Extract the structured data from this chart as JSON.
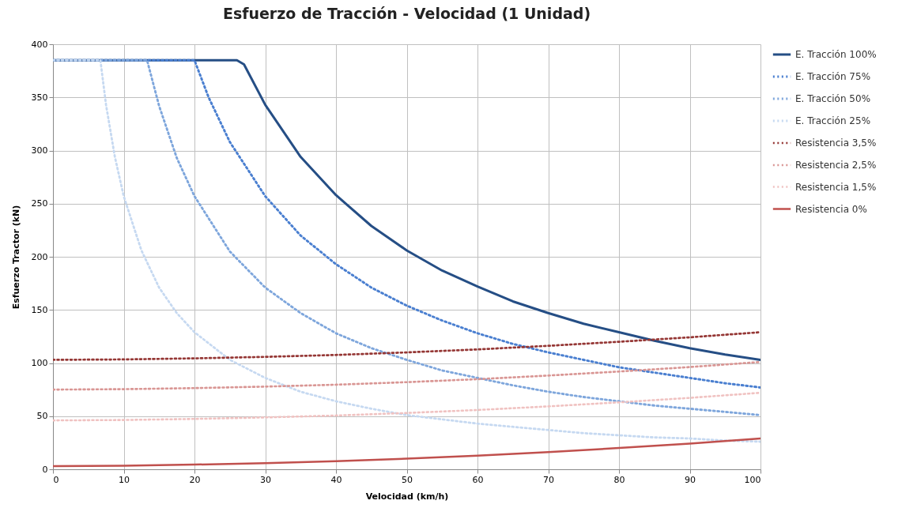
{
  "chart_data": {
    "type": "line",
    "title": "Esfuerzo de Tracción - Velocidad (1 Unidad)",
    "xlabel": "Velocidad (km/h)",
    "ylabel": "Esfuerzo Tractor (kN)",
    "xlim": [
      0,
      100
    ],
    "xticks": [
      0,
      10,
      20,
      30,
      40,
      50,
      60,
      70,
      80,
      90,
      100
    ],
    "ylim": [
      0,
      400
    ],
    "yticks": [
      0,
      50,
      100,
      150,
      200,
      250,
      300,
      350,
      400
    ],
    "grid": true,
    "legend": "right",
    "marker": "none",
    "series": [
      {
        "name": "E. Tracción 100%",
        "color": "#254e85",
        "line_style": "solid",
        "x": [
          0,
          26,
          27,
          30,
          35,
          40,
          45,
          50,
          55,
          60,
          65,
          70,
          75,
          80,
          85,
          90,
          95,
          100
        ],
        "values": [
          385,
          385,
          381,
          343,
          294,
          258,
          229,
          206,
          187,
          172,
          158,
          147,
          137,
          129,
          121,
          114,
          108,
          103
        ]
      },
      {
        "name": "E. Tracción 75%",
        "color": "#4a7fd0",
        "line_style": "dotted",
        "x": [
          0,
          20,
          22,
          25,
          30,
          35,
          40,
          45,
          50,
          55,
          60,
          65,
          70,
          75,
          80,
          85,
          90,
          95,
          100
        ],
        "values": [
          385,
          385,
          350,
          308,
          257,
          220,
          193,
          171,
          154,
          140,
          128,
          118,
          110,
          103,
          96,
          91,
          86,
          81,
          77
        ]
      },
      {
        "name": "E. Tracción 50%",
        "color": "#7ea6dc",
        "line_style": "dotted",
        "x": [
          0,
          13.3,
          15,
          17.5,
          20,
          25,
          30,
          35,
          40,
          45,
          50,
          55,
          60,
          65,
          70,
          75,
          80,
          85,
          90,
          95,
          100
        ],
        "values": [
          385,
          385,
          342,
          293,
          257,
          205,
          171,
          147,
          128,
          114,
          103,
          93,
          86,
          79,
          73,
          68,
          64,
          60,
          57,
          54,
          51
        ]
      },
      {
        "name": "E. Tracción 25%",
        "color": "#c6d9f1",
        "line_style": "dotted",
        "x": [
          0,
          6.7,
          7.5,
          8.75,
          10,
          12.5,
          15,
          17.5,
          20,
          25,
          30,
          35,
          40,
          45,
          50,
          55,
          60,
          65,
          70,
          75,
          80,
          85,
          90,
          95,
          100
        ],
        "values": [
          385,
          385,
          343,
          294,
          257,
          206,
          171,
          147,
          129,
          103,
          86,
          73,
          64,
          57,
          51,
          47,
          43,
          40,
          37,
          34,
          32,
          30,
          29,
          27,
          26
        ]
      },
      {
        "name": "Resistencia 3,5%",
        "color": "#953735",
        "line_style": "dotted",
        "x": [
          0,
          10,
          20,
          30,
          40,
          50,
          60,
          70,
          80,
          90,
          100
        ],
        "values": [
          103,
          103.4,
          104.4,
          105.8,
          107.6,
          110,
          112.8,
          116.2,
          120,
          124.2,
          129
        ]
      },
      {
        "name": "Resistencia 2,5%",
        "color": "#d99694",
        "line_style": "dotted",
        "x": [
          0,
          10,
          20,
          30,
          40,
          50,
          60,
          70,
          80,
          90,
          100
        ],
        "values": [
          75,
          75.4,
          76.4,
          77.8,
          79.6,
          82,
          84.8,
          88.2,
          92,
          96.2,
          101
        ]
      },
      {
        "name": "Resistencia 1,5%",
        "color": "#f0c2c1",
        "line_style": "dotted",
        "x": [
          0,
          10,
          20,
          30,
          40,
          50,
          60,
          70,
          80,
          90,
          100
        ],
        "values": [
          46,
          46.4,
          47.4,
          48.8,
          50.6,
          53,
          55.8,
          59.2,
          63,
          67.2,
          72
        ]
      },
      {
        "name": "Resistencia 0%",
        "color": "#c0504d",
        "line_style": "solid",
        "x": [
          0,
          10,
          20,
          30,
          40,
          50,
          60,
          70,
          80,
          90,
          100
        ],
        "values": [
          3,
          3.4,
          4.4,
          5.8,
          7.6,
          10,
          12.8,
          16.2,
          20,
          24.2,
          29
        ]
      }
    ]
  }
}
